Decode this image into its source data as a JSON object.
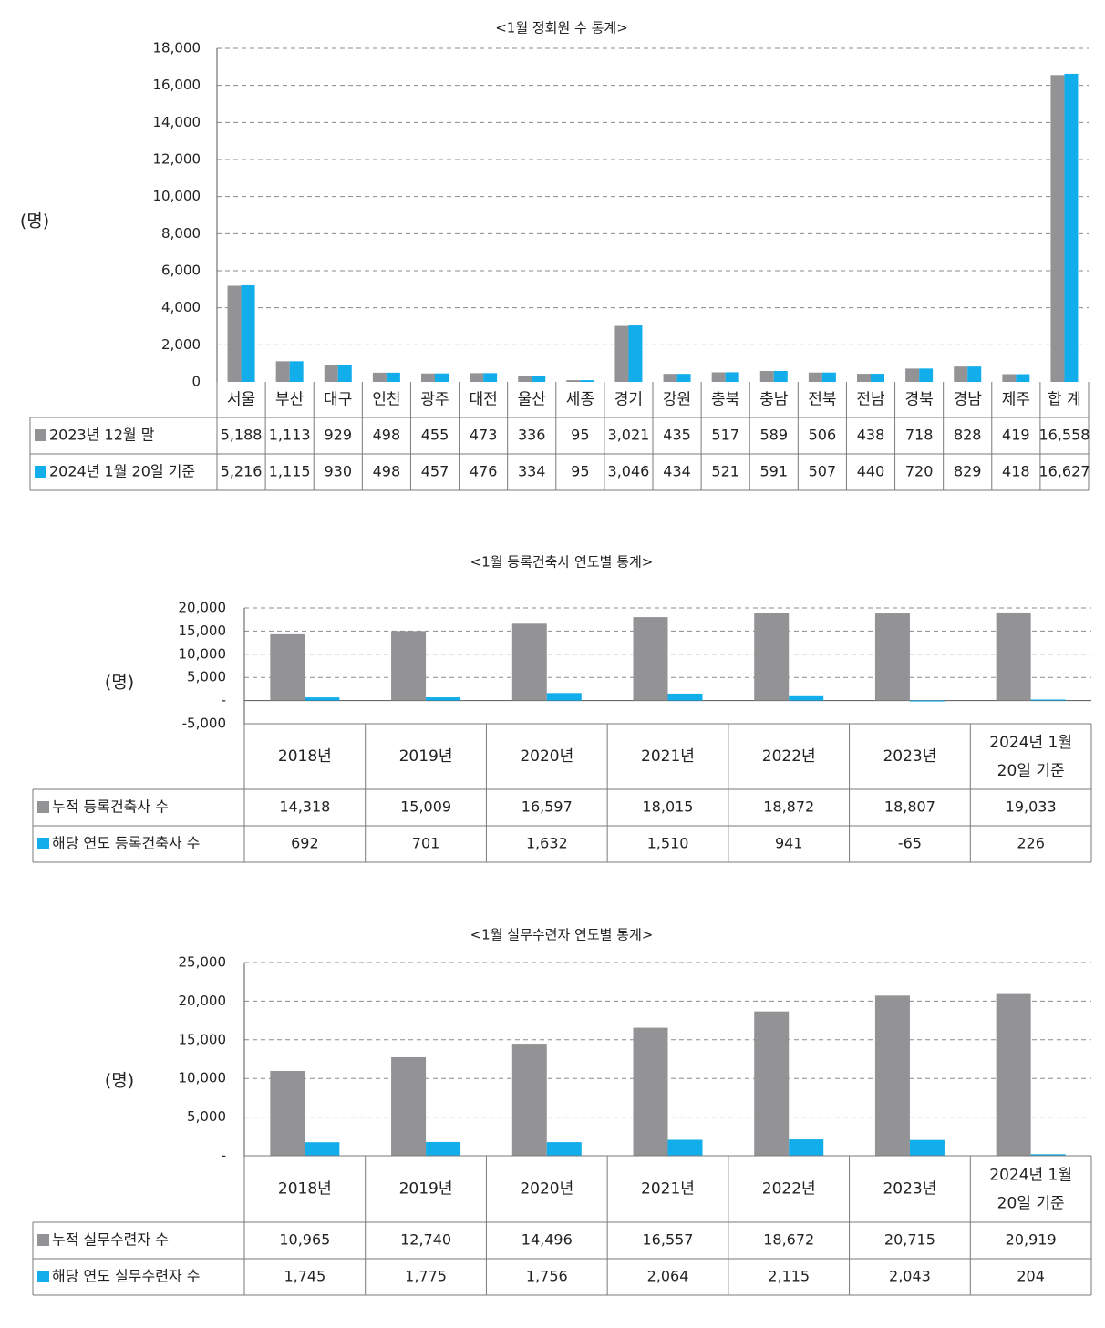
{
  "colors": {
    "series_2023": "#939395",
    "series_2024": "#12adeb",
    "grid": "#8a8a8a",
    "table_border": "#7a7a7a"
  },
  "chart_data": [
    {
      "type": "bar",
      "title": "<1월 정회원 수 통계>",
      "ylabel": "(명)",
      "ylim": [
        0,
        18000
      ],
      "yticks": [
        "18,000",
        "16,000",
        "14,000",
        "12,000",
        "10,000",
        "8,000",
        "6,000",
        "4,000",
        "2,000",
        "0"
      ],
      "grid": true,
      "legend": "table",
      "categories": [
        "서울",
        "부산",
        "대구",
        "인천",
        "광주",
        "대전",
        "울산",
        "세종",
        "경기",
        "강원",
        "충북",
        "충남",
        "전북",
        "전남",
        "경북",
        "경남",
        "제주",
        "합 계"
      ],
      "series": [
        {
          "name": "2023년 12월 말",
          "values": [
            5188,
            1113,
            929,
            498,
            455,
            473,
            336,
            95,
            3021,
            435,
            517,
            589,
            506,
            438,
            718,
            828,
            419,
            16558
          ],
          "labels": [
            "5,188",
            "1,113",
            "929",
            "498",
            "455",
            "473",
            "336",
            "95",
            "3,021",
            "435",
            "517",
            "589",
            "506",
            "438",
            "718",
            "828",
            "419",
            "16,558"
          ]
        },
        {
          "name": "2024년 1월 20일 기준",
          "values": [
            5216,
            1115,
            930,
            498,
            457,
            476,
            334,
            95,
            3046,
            434,
            521,
            591,
            507,
            440,
            720,
            829,
            418,
            16627
          ],
          "labels": [
            "5,216",
            "1,115",
            "930",
            "498",
            "457",
            "476",
            "334",
            "95",
            "3,046",
            "434",
            "521",
            "591",
            "507",
            "440",
            "720",
            "829",
            "418",
            "16,627"
          ]
        }
      ]
    },
    {
      "type": "bar",
      "title": "<1월 등록건축사 연도별 통계>",
      "ylabel": "(명)",
      "ylim": [
        -5000,
        20000
      ],
      "yticks": [
        "20,000",
        "15,000",
        "10,000",
        "5,000",
        "-",
        "-5,000"
      ],
      "grid": true,
      "legend": "table",
      "categories": [
        "2018년",
        "2019년",
        "2020년",
        "2021년",
        "2022년",
        "2023년",
        "2024년 1월 20일 기준"
      ],
      "series": [
        {
          "name": "누적 등록건축사 수",
          "values": [
            14318,
            15009,
            16597,
            18015,
            18872,
            18807,
            19033
          ],
          "labels": [
            "14,318",
            "15,009",
            "16,597",
            "18,015",
            "18,872",
            "18,807",
            "19,033"
          ]
        },
        {
          "name": "해당 연도 등록건축사 수",
          "values": [
            692,
            701,
            1632,
            1510,
            941,
            -65,
            226
          ],
          "labels": [
            "692",
            "701",
            "1,632",
            "1,510",
            "941",
            "-65",
            "226"
          ]
        }
      ]
    },
    {
      "type": "bar",
      "title": "<1월 실무수련자 연도별 통계>",
      "ylabel": "(명)",
      "ylim": [
        0,
        25000
      ],
      "yticks": [
        "25,000",
        "20,000",
        "15,000",
        "10,000",
        "5,000",
        "-"
      ],
      "grid": true,
      "legend": "table",
      "categories": [
        "2018년",
        "2019년",
        "2020년",
        "2021년",
        "2022년",
        "2023년",
        "2024년 1월 20일 기준"
      ],
      "series": [
        {
          "name": "누적 실무수련자 수",
          "values": [
            10965,
            12740,
            14496,
            16557,
            18672,
            20715,
            20919
          ],
          "labels": [
            "10,965",
            "12,740",
            "14,496",
            "16,557",
            "18,672",
            "20,715",
            "20,919"
          ]
        },
        {
          "name": "해당 연도 실무수련자 수",
          "values": [
            1745,
            1775,
            1756,
            2064,
            2115,
            2043,
            204
          ],
          "labels": [
            "1,745",
            "1,775",
            "1,756",
            "2,064",
            "2,115",
            "2,043",
            "204"
          ]
        }
      ]
    }
  ]
}
